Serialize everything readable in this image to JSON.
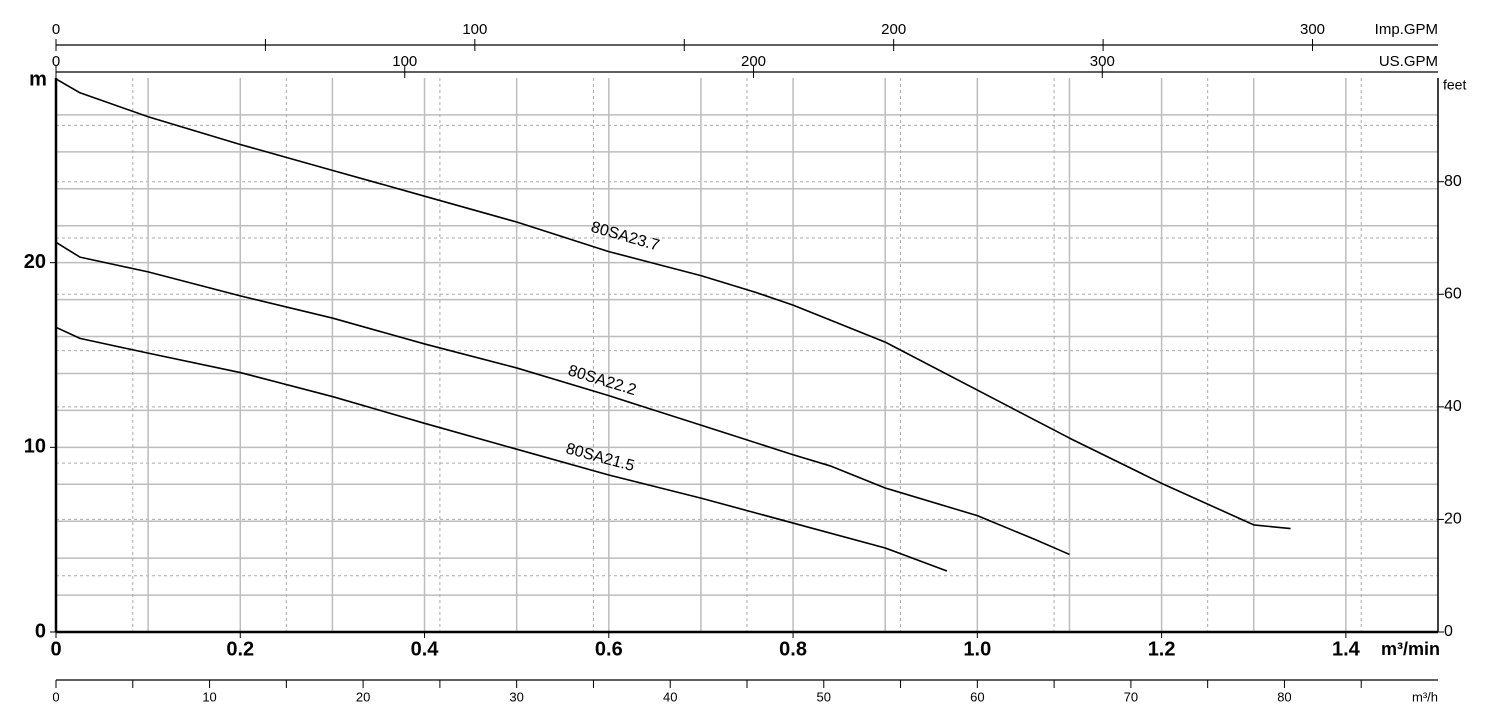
{
  "chart_data": {
    "type": "line",
    "x_label": "m³/min",
    "y_label": "m",
    "y2_label": "feet",
    "xlim": [
      0,
      1.5
    ],
    "xticks": [
      0,
      0.2,
      0.4,
      0.6,
      0.8,
      {
        "value": 1,
        "label": "1.0"
      },
      1.2,
      1.4
    ],
    "ylim": [
      0,
      30
    ],
    "yticks": [
      0,
      10,
      20
    ],
    "y2lim": [
      0,
      98.425
    ],
    "y2ticks": [
      0,
      20,
      40,
      60,
      80
    ],
    "grid": true,
    "xgrid": [
      0.1,
      0.2,
      0.3,
      0.4,
      0.5,
      0.6,
      0.7,
      0.8,
      0.9,
      1.0,
      1.1,
      1.2,
      1.3,
      1.4
    ],
    "ygrid": [
      2,
      4,
      6,
      8,
      10,
      12,
      14,
      16,
      18,
      20,
      22,
      24,
      26,
      28
    ],
    "y2grid": [
      10,
      20,
      30,
      40,
      50,
      60,
      70,
      80,
      90
    ],
    "extra_x_axes": [
      {
        "position": "top",
        "label": "Imp.GPM",
        "lim": [
          0,
          329.96
        ],
        "ticks": [
          0,
          100,
          200,
          300
        ],
        "minor_ticks": [
          50,
          150,
          250
        ]
      },
      {
        "position": "top",
        "label": "US.GPM",
        "lim": [
          0,
          396.26
        ],
        "ticks": [
          0,
          100,
          200,
          300
        ],
        "minor_ticks": []
      },
      {
        "position": "bottom",
        "label": "m³/h",
        "lim": [
          0,
          90
        ],
        "ticks": [
          0,
          10,
          20,
          30,
          40,
          50,
          60,
          70,
          80
        ],
        "minor_ticks": [
          5,
          15,
          25,
          35,
          45,
          55,
          65,
          75,
          85
        ]
      }
    ],
    "series": [
      {
        "name": "80SA23.7",
        "color": "#000000",
        "x": [
          0,
          0.026,
          0.1,
          0.2,
          0.3,
          0.4,
          0.5,
          0.6,
          0.7,
          0.759,
          0.8,
          0.9,
          1.0,
          1.1,
          1.2,
          1.3,
          1.34
        ],
        "values": [
          29.95,
          29.2,
          27.9,
          26.4,
          25.0,
          23.6,
          22.2,
          20.6,
          19.3,
          18.4,
          17.7,
          15.7,
          13.1,
          10.5,
          8.05,
          5.8,
          5.6
        ]
      },
      {
        "name": "80SA22.2",
        "color": "#000000",
        "x": [
          0,
          0.026,
          0.1,
          0.2,
          0.3,
          0.4,
          0.5,
          0.6,
          0.7,
          0.8,
          0.84,
          0.9,
          1.0,
          1.063,
          1.1
        ],
        "values": [
          21.1,
          20.3,
          19.5,
          18.2,
          17.0,
          15.6,
          14.3,
          12.8,
          11.2,
          9.6,
          9.0,
          7.8,
          6.3,
          5.0,
          4.2
        ]
      },
      {
        "name": "80SA21.5",
        "color": "#000000",
        "x": [
          0,
          0.026,
          0.1,
          0.2,
          0.3,
          0.4,
          0.5,
          0.6,
          0.7,
          0.8,
          0.9,
          0.967
        ],
        "values": [
          16.5,
          15.9,
          15.1,
          14.05,
          12.75,
          11.3,
          9.9,
          8.5,
          7.25,
          5.9,
          4.55,
          3.3
        ]
      }
    ]
  }
}
